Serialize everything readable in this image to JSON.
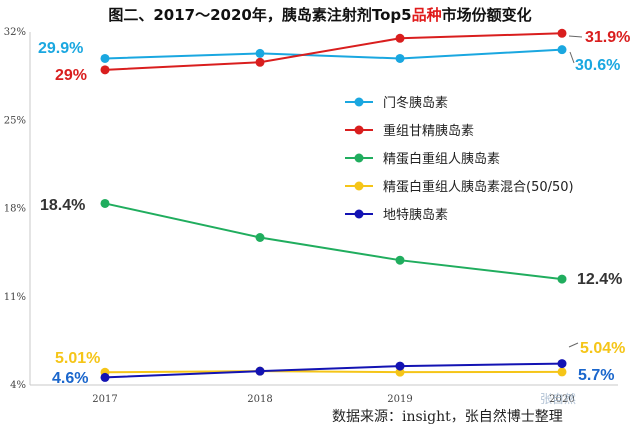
{
  "title": {
    "black_part1": "图二、2017～2020年，胰岛素注射剂Top5",
    "red_part": "品种",
    "black_part2": "市场份额变化"
  },
  "source": "数据来源：insight，张自然博士整理",
  "watermark": "张自然",
  "chart_data": {
    "type": "line",
    "x": [
      "2017",
      "2018",
      "2019",
      "2020"
    ],
    "ylim": [
      4,
      32
    ],
    "yticks": [
      4,
      11,
      18,
      25,
      32
    ],
    "ytick_labels": [
      "4%",
      "11%",
      "18%",
      "25%",
      "32%"
    ],
    "legend_position": "center-right",
    "grid": false,
    "series": [
      {
        "name": "门冬胰岛素",
        "color": "#1aa7e0",
        "values": [
          29.9,
          30.3,
          29.9,
          30.6
        ],
        "start_label": "29.9%",
        "end_label": "30.6%",
        "start_label_color": "#1aa7e0",
        "end_label_color": "#1aa7e0"
      },
      {
        "name": "重组甘精胰岛素",
        "color": "#d91e1e",
        "values": [
          29.0,
          29.6,
          31.5,
          31.9
        ],
        "start_label": "29%",
        "end_label": "31.9%",
        "start_label_color": "#d91e1e",
        "end_label_color": "#d91e1e"
      },
      {
        "name": "精蛋白重组人胰岛素",
        "color": "#20ad5e",
        "values": [
          18.4,
          15.7,
          13.9,
          12.4
        ],
        "start_label": "18.4%",
        "end_label": "12.4%",
        "start_label_color": "#333333",
        "end_label_color": "#333333"
      },
      {
        "name": "精蛋白重组人胰岛素混合(50/50)",
        "color": "#f5c518",
        "values": [
          5.01,
          5.1,
          5.02,
          5.04
        ],
        "start_label": "5.01%",
        "end_label": "5.04%",
        "start_label_color": "#f5c518",
        "end_label_color": "#f5c518"
      },
      {
        "name": "地特胰岛素",
        "color": "#1313b3",
        "values": [
          4.6,
          5.1,
          5.5,
          5.7
        ],
        "start_label": "4.6%",
        "end_label": "5.7%",
        "start_label_color": "#1a66cc",
        "end_label_color": "#1a66cc"
      }
    ]
  }
}
